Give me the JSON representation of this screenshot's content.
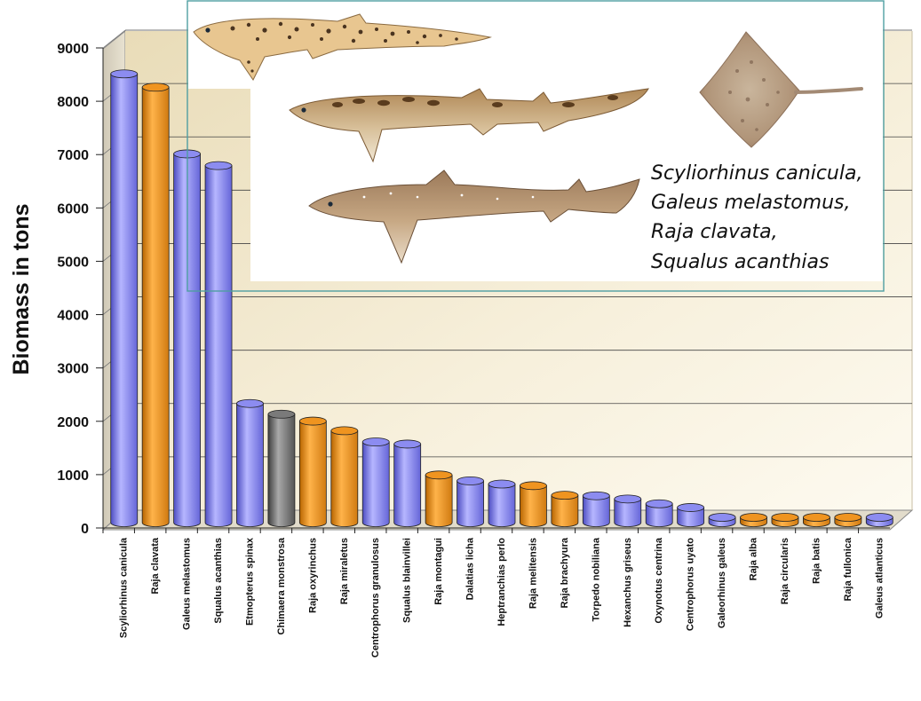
{
  "chart_data": {
    "type": "bar",
    "ylabel": "Biomass in tons",
    "ylim": [
      0,
      9000
    ],
    "yticks": [
      0,
      1000,
      2000,
      3000,
      4000,
      5000,
      6000,
      7000,
      8000,
      9000
    ],
    "grid": true,
    "colors": {
      "blue": "#8c8cf0",
      "orange": "#ef9420",
      "gray": "#7a7a7a"
    },
    "categories": [
      "Scyliorhinus canicula",
      "Raja clavata",
      "Galeus melastomus",
      "Squalus acanthias",
      "Etmopterus spinax",
      "Chimaera monstrosa",
      "Raja oxyrinchus",
      "Raja miraletus",
      "Centrophorus granulosus",
      "Squalus blainvillei",
      "Raja montagui",
      "Dalatias licha",
      "Heptranchias perlo",
      "Raja melitensis",
      "Raja brachyura",
      "Torpedo nobiliana",
      "Hexanchus griseus",
      "Oxynotus centrina",
      "Centrophorus uyato",
      "Galeorhinus galeus",
      "Raja alba",
      "Raja circularis",
      "Raja batis",
      "Raja fullonica",
      "Galeus atlanticus"
    ],
    "values": [
      8480,
      8230,
      6980,
      6760,
      2300,
      2100,
      1970,
      1790,
      1580,
      1540,
      960,
      850,
      790,
      760,
      580,
      570,
      510,
      420,
      350,
      150,
      120,
      50,
      40,
      30,
      20
    ],
    "bar_colors": [
      "blue",
      "orange",
      "blue",
      "blue",
      "blue",
      "gray",
      "orange",
      "orange",
      "blue",
      "blue",
      "orange",
      "blue",
      "blue",
      "orange",
      "orange",
      "blue",
      "blue",
      "blue",
      "blue",
      "blue",
      "orange",
      "orange",
      "orange",
      "orange",
      "blue"
    ]
  },
  "inset": {
    "species_lines": [
      "Scyliorhinus canicula,",
      "Galeus melastomus,",
      "Raja clavata,",
      "Squalus acanthias"
    ]
  }
}
